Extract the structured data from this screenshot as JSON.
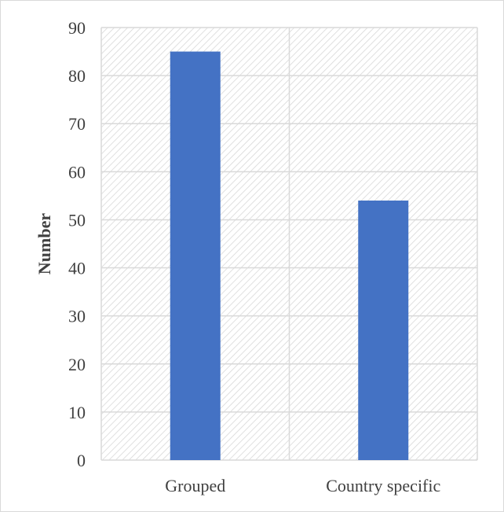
{
  "chart_data": {
    "type": "bar",
    "categories": [
      "Grouped",
      "Country specific"
    ],
    "values": [
      85,
      54
    ],
    "title": "",
    "xlabel": "",
    "ylabel": "Number",
    "ylim": [
      0,
      90
    ],
    "yticks": [
      "0",
      "10",
      "20",
      "30",
      "40",
      "50",
      "60",
      "70",
      "80",
      "90"
    ],
    "grid": true,
    "legend": "none",
    "colors": {
      "bar": "#4472c4",
      "grid": "#d9d9d9",
      "hatch": "#d6d6d6",
      "text": "#404040"
    }
  }
}
